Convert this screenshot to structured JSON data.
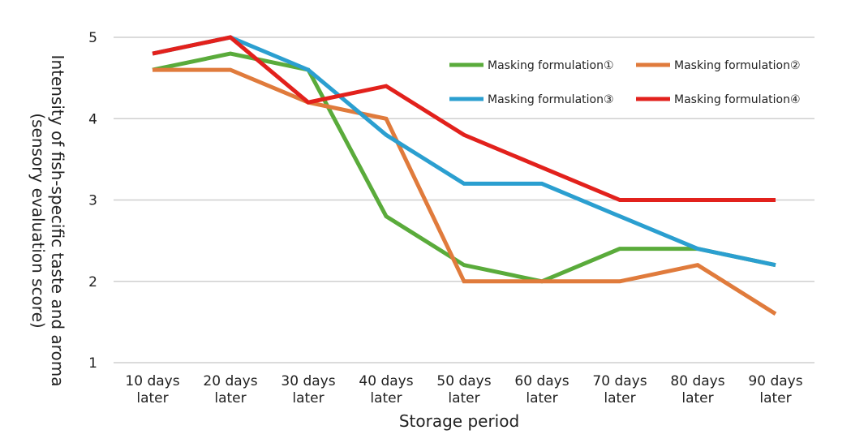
{
  "chart_data": {
    "type": "line",
    "title": "",
    "xlabel": "Storage period",
    "ylabel_lines": [
      "Intensity of fish-specific taste and aroma",
      "(sensory evaluation score)"
    ],
    "categories": [
      [
        "10 days",
        "later"
      ],
      [
        "20 days",
        "later"
      ],
      [
        "30 days",
        "later"
      ],
      [
        "40 days",
        "later"
      ],
      [
        "50 days",
        "later"
      ],
      [
        "60 days",
        "later"
      ],
      [
        "70 days",
        "later"
      ],
      [
        "80 days",
        "later"
      ],
      [
        "90 days",
        "later"
      ]
    ],
    "ylim": [
      1,
      5
    ],
    "yticks": [
      1,
      2,
      3,
      4,
      5
    ],
    "grid": true,
    "legend_position": "top-right",
    "series": [
      {
        "name": "Masking formulation①",
        "color": "#5aab3b",
        "values": [
          4.6,
          4.8,
          4.6,
          2.8,
          2.2,
          2.0,
          2.4,
          2.4,
          2.2
        ]
      },
      {
        "name": "Masking formulation②",
        "color": "#e07b3c",
        "values": [
          4.6,
          4.6,
          4.2,
          4.0,
          2.0,
          2.0,
          2.0,
          2.2,
          1.6
        ]
      },
      {
        "name": "Masking formulation③",
        "color": "#2b9fd0",
        "values": [
          4.8,
          5.0,
          4.6,
          3.8,
          3.2,
          3.2,
          2.8,
          2.4,
          2.2
        ]
      },
      {
        "name": "Masking formulation④",
        "color": "#e2211c",
        "values": [
          4.8,
          5.0,
          4.2,
          4.4,
          3.8,
          3.4,
          3.0,
          3.0,
          3.0
        ]
      }
    ]
  }
}
